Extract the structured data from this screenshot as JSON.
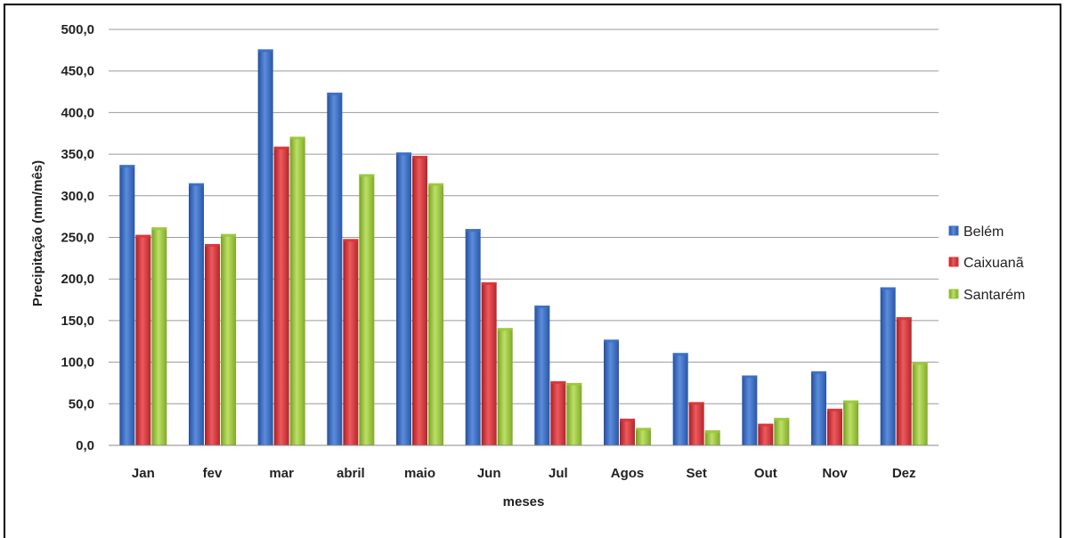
{
  "chart_data": {
    "type": "bar",
    "categories": [
      "Jan",
      "fev",
      "mar",
      "abril",
      "maio",
      "Jun",
      "Jul",
      "Agos",
      "Set",
      "Out",
      "Nov",
      "Dez"
    ],
    "series": [
      {
        "name": "Belém",
        "color": "#3d6fc4",
        "values": [
          337,
          315,
          476,
          424,
          352,
          260,
          168,
          127,
          111,
          84,
          89,
          190
        ]
      },
      {
        "name": "Caixuanã",
        "color": "#d9363a",
        "values": [
          253,
          242,
          359,
          248,
          348,
          196,
          77,
          32,
          52,
          26,
          44,
          154
        ]
      },
      {
        "name": "Santarém",
        "color": "#9cc83c",
        "values": [
          262,
          254,
          371,
          326,
          315,
          141,
          75,
          21,
          18,
          33,
          54,
          100
        ]
      }
    ],
    "yticks": [
      "0,0",
      "50,0",
      "100,0",
      "150,0",
      "200,0",
      "250,0",
      "300,0",
      "350,0",
      "400,0",
      "450,0",
      "500,0"
    ],
    "ylim": [
      0,
      500
    ],
    "xlabel": "meses",
    "ylabel": "Precipitação (mm/mês)",
    "grid": true,
    "legend_position": "right"
  }
}
